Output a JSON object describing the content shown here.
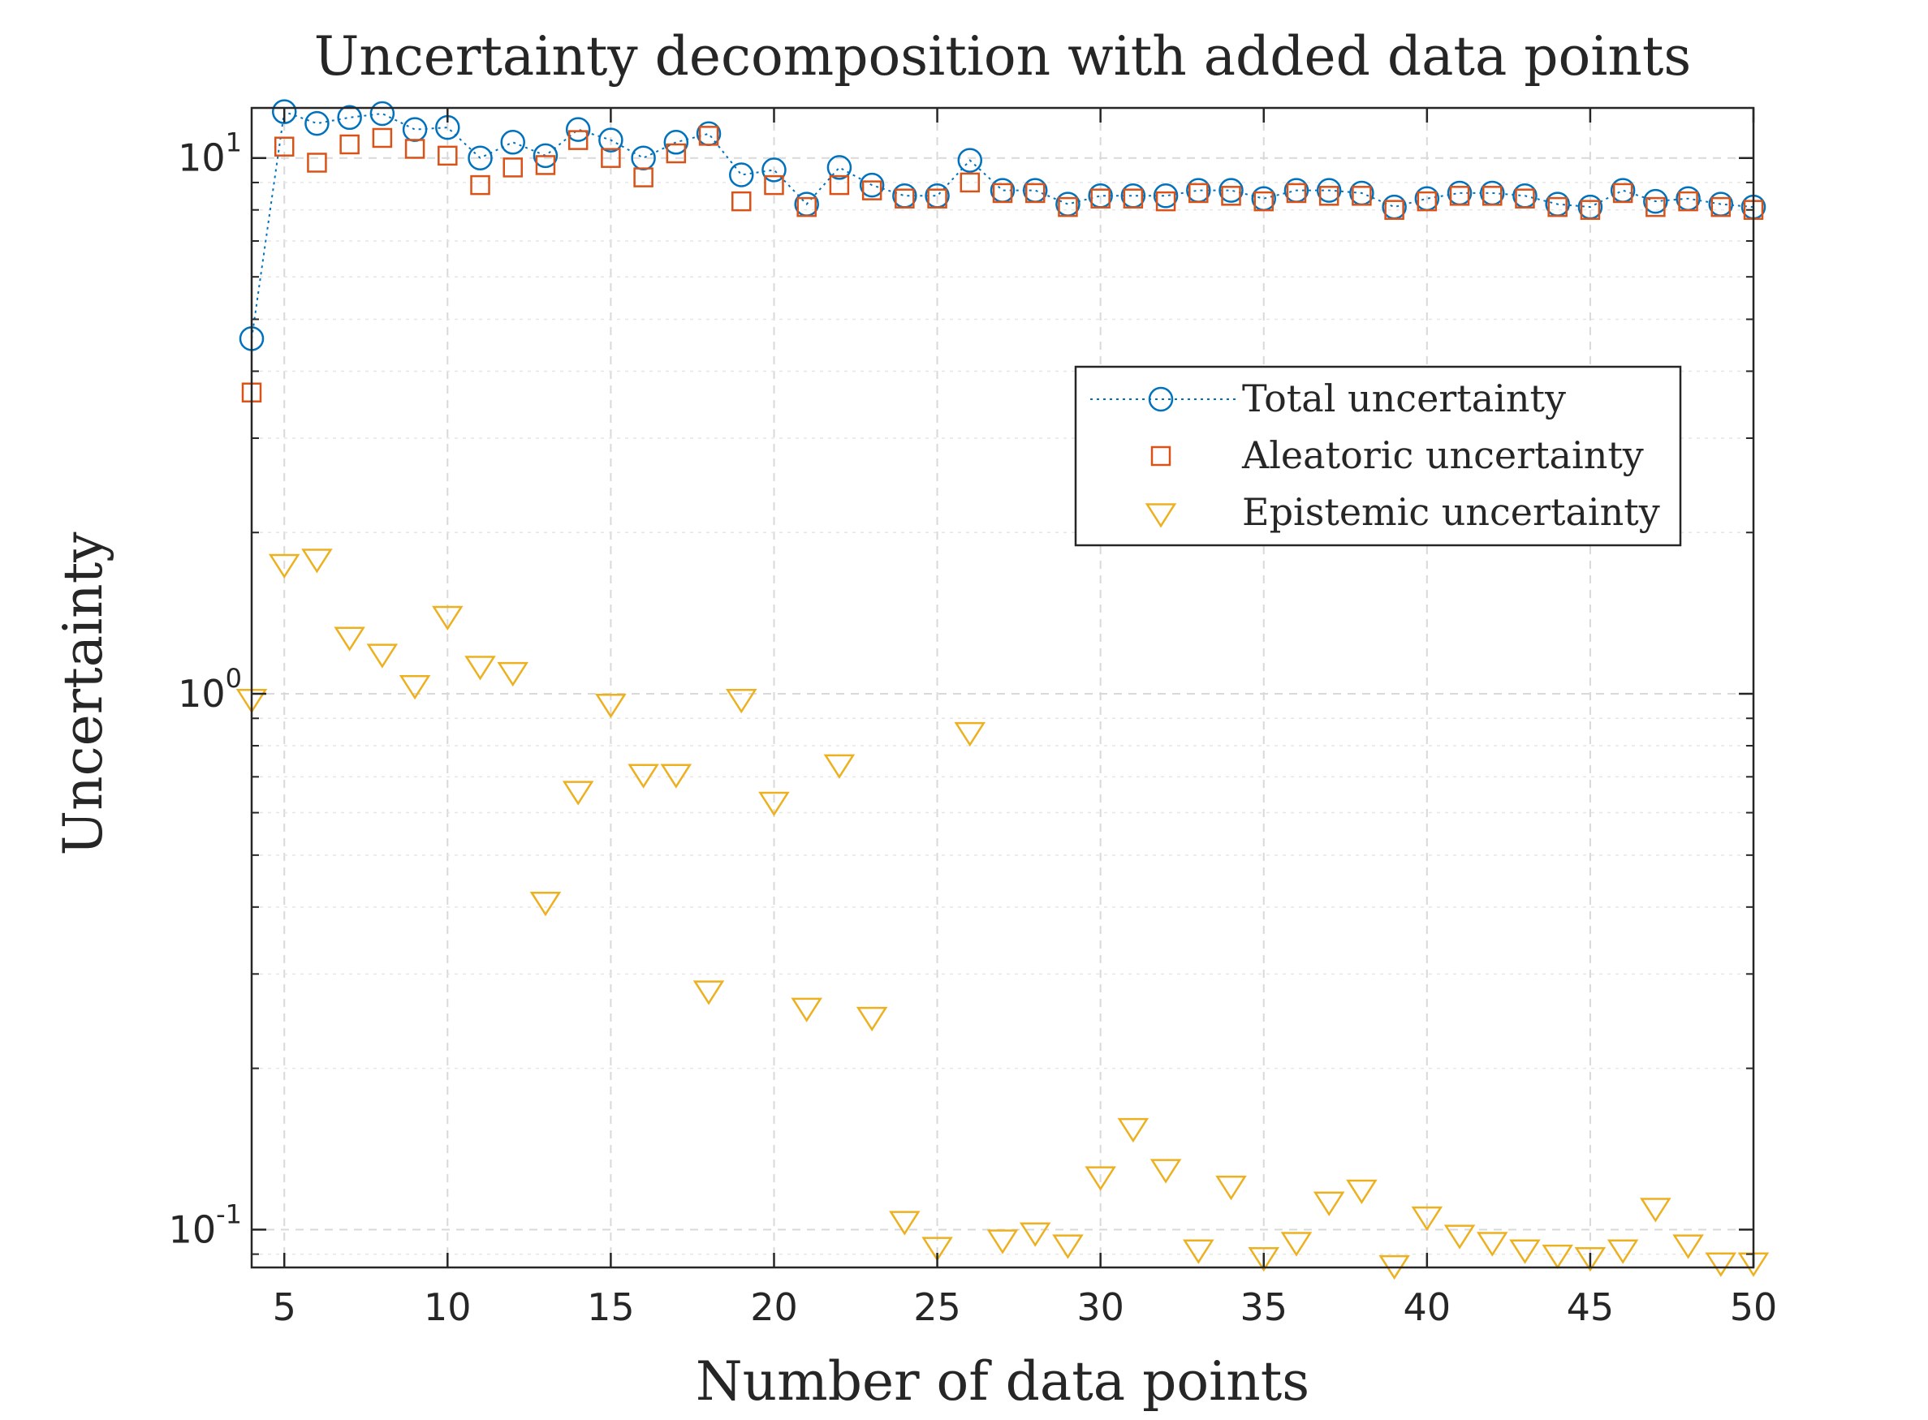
{
  "chart_data": {
    "type": "scatter",
    "title": "Uncertainty decomposition with added data points",
    "xlabel": "Number of data points",
    "ylabel": "Uncertainty",
    "xlim": [
      4,
      50
    ],
    "ylim": [
      0.085,
      12.4
    ],
    "yscale": "log",
    "grid": true,
    "legend_position": "upper-right",
    "x_ticks": [
      5,
      10,
      15,
      20,
      25,
      30,
      35,
      40,
      45,
      50
    ],
    "y_ticks": [
      {
        "value": 0.1,
        "base": "10",
        "exp": "-1"
      },
      {
        "value": 1,
        "base": "10",
        "exp": "0"
      },
      {
        "value": 10,
        "base": "10",
        "exp": "1"
      }
    ],
    "x": [
      4,
      5,
      6,
      7,
      8,
      9,
      10,
      11,
      12,
      13,
      14,
      15,
      16,
      17,
      18,
      19,
      20,
      21,
      22,
      23,
      24,
      25,
      26,
      27,
      28,
      29,
      30,
      31,
      32,
      33,
      34,
      35,
      36,
      37,
      38,
      39,
      40,
      41,
      42,
      43,
      44,
      45,
      46,
      47,
      48,
      49,
      50
    ],
    "series": [
      {
        "name": "Total uncertainty",
        "marker": "circle",
        "line": "dotted",
        "color": "#0072BD",
        "values": [
          4.6,
          12.2,
          11.6,
          11.9,
          12.1,
          11.3,
          11.4,
          10.0,
          10.7,
          10.1,
          11.3,
          10.8,
          10.0,
          10.7,
          11.1,
          9.3,
          9.5,
          8.2,
          9.6,
          8.9,
          8.5,
          8.5,
          9.9,
          8.7,
          8.7,
          8.2,
          8.5,
          8.5,
          8.5,
          8.7,
          8.7,
          8.4,
          8.7,
          8.7,
          8.6,
          8.1,
          8.4,
          8.6,
          8.6,
          8.5,
          8.2,
          8.1,
          8.7,
          8.3,
          8.4,
          8.2,
          8.1
        ]
      },
      {
        "name": "Aleatoric uncertainty",
        "marker": "square",
        "line": "none",
        "color": "#D95319",
        "values": [
          3.65,
          10.5,
          9.8,
          10.6,
          10.9,
          10.4,
          10.1,
          8.9,
          9.6,
          9.7,
          10.8,
          10.0,
          9.2,
          10.2,
          11.0,
          8.3,
          8.9,
          8.1,
          8.9,
          8.7,
          8.4,
          8.4,
          9.0,
          8.6,
          8.6,
          8.1,
          8.4,
          8.4,
          8.3,
          8.6,
          8.5,
          8.3,
          8.6,
          8.5,
          8.5,
          8.0,
          8.3,
          8.5,
          8.5,
          8.4,
          8.1,
          8.0,
          8.6,
          8.1,
          8.3,
          8.1,
          8.0
        ]
      },
      {
        "name": "Epistemic uncertainty",
        "marker": "triangle-down",
        "line": "none",
        "color": "#EDB120",
        "values": [
          0.98,
          1.75,
          1.79,
          1.28,
          1.19,
          1.04,
          1.4,
          1.13,
          1.1,
          0.41,
          0.66,
          0.96,
          0.71,
          0.71,
          0.28,
          0.98,
          0.63,
          0.26,
          0.74,
          0.25,
          0.104,
          0.093,
          0.85,
          0.096,
          0.099,
          0.094,
          0.126,
          0.155,
          0.13,
          0.092,
          0.121,
          0.089,
          0.095,
          0.113,
          0.119,
          0.086,
          0.106,
          0.098,
          0.095,
          0.092,
          0.09,
          0.089,
          0.092,
          0.11,
          0.094,
          0.087,
          0.087
        ]
      }
    ]
  }
}
